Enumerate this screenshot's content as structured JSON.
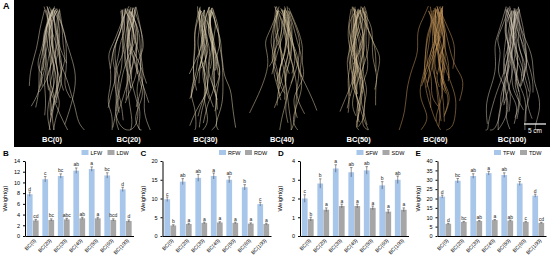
{
  "panel_a": {
    "label": "A",
    "samples": [
      "BC(0)",
      "BC(20)",
      "BC(30)",
      "BC(40)",
      "BC(50)",
      "BC(60)",
      "BC(100)"
    ],
    "scale_bar": "5 cm"
  },
  "chart_data": [
    {
      "type": "bar",
      "title": "B",
      "y_label": "Weight(g)",
      "categories": [
        "BC(0)",
        "BC(20)",
        "BC(30)",
        "BC(40)",
        "BC(50)",
        "BC(60)",
        "BC(100)"
      ],
      "series": [
        {
          "name": "LFW",
          "color": "#a8c6ea",
          "values": [
            7.8,
            10.6,
            11.2,
            12.2,
            12.5,
            11.3,
            8.7
          ],
          "errors": [
            0.4,
            0.5,
            0.4,
            0.5,
            0.4,
            0.5,
            0.4
          ],
          "annotations": [
            "d",
            "c",
            "bc",
            "ab",
            "a",
            "bc",
            "d"
          ]
        },
        {
          "name": "LDW",
          "color": "#a6a6a6",
          "values": [
            2.9,
            3.0,
            3.1,
            3.3,
            3.3,
            3.0,
            2.8
          ],
          "errors": [
            0.2,
            0.2,
            0.2,
            0.2,
            0.2,
            0.2,
            0.2
          ],
          "annotations": [
            "cd",
            "bc",
            "abc",
            "ab",
            "a",
            "bcd",
            "d"
          ]
        }
      ],
      "ylim": [
        0,
        14
      ],
      "yticks": [
        0,
        2,
        4,
        6,
        8,
        10,
        12,
        14
      ],
      "legend": "top-right"
    },
    {
      "type": "bar",
      "title": "C",
      "y_label": "Weight(g)",
      "categories": [
        "BC(0)",
        "BC(20)",
        "BC(30)",
        "BC(40)",
        "BC(50)",
        "BC(60)",
        "BC(100)"
      ],
      "series": [
        {
          "name": "RFW",
          "color": "#a8c6ea",
          "values": [
            9.8,
            14.5,
            15.5,
            16.0,
            15.0,
            13.0,
            8.5
          ],
          "errors": [
            0.6,
            0.8,
            0.9,
            0.8,
            0.8,
            0.7,
            0.5
          ],
          "annotations": [
            "c",
            "ab",
            "ab",
            "a",
            "ab",
            "b",
            "c"
          ]
        },
        {
          "name": "RDW",
          "color": "#a6a6a6",
          "values": [
            2.8,
            3.2,
            3.5,
            3.6,
            3.5,
            3.3,
            3.2
          ],
          "errors": [
            0.2,
            0.2,
            0.2,
            0.2,
            0.2,
            0.2,
            0.2
          ],
          "annotations": [
            "b",
            "a",
            "a",
            "a",
            "a",
            "a",
            "a"
          ]
        }
      ],
      "ylim": [
        0,
        20
      ],
      "yticks": [
        0,
        5,
        10,
        15,
        20
      ],
      "legend": "top-right"
    },
    {
      "type": "bar",
      "title": "D",
      "y_label": "Weight(g)",
      "categories": [
        "BC(0)",
        "BC(20)",
        "BC(30)",
        "BC(40)",
        "BC(50)",
        "BC(60)",
        "BC(100)"
      ],
      "series": [
        {
          "name": "SFW",
          "color": "#a8c6ea",
          "values": [
            2.0,
            2.8,
            3.6,
            3.4,
            3.5,
            2.7,
            3.0
          ],
          "errors": [
            0.2,
            0.25,
            0.2,
            0.25,
            0.2,
            0.2,
            0.2
          ],
          "annotations": [
            "c",
            "b",
            "a",
            "ab",
            "ab",
            "b",
            "ab"
          ]
        },
        {
          "name": "SDW",
          "color": "#a6a6a6",
          "values": [
            0.9,
            1.4,
            1.6,
            1.6,
            1.5,
            1.3,
            1.4
          ],
          "errors": [
            0.1,
            0.1,
            0.1,
            0.1,
            0.1,
            0.1,
            0.1
          ],
          "annotations": [
            "b",
            "a",
            "a",
            "a",
            "a",
            "a",
            "a"
          ]
        }
      ],
      "ylim": [
        0,
        4
      ],
      "yticks": [
        0,
        1,
        2,
        3,
        4
      ],
      "legend": "top-right"
    },
    {
      "type": "bar",
      "title": "E",
      "y_label": "Weight(g)",
      "categories": [
        "BC(0)",
        "BC(20)",
        "BC(30)",
        "BC(40)",
        "BC(50)",
        "BC(60)",
        "BC(100)"
      ],
      "series": [
        {
          "name": "TFW",
          "color": "#a8c6ea",
          "values": [
            21.0,
            29.5,
            32.0,
            33.5,
            32.5,
            28.0,
            21.5
          ],
          "errors": [
            0.8,
            1.2,
            1.2,
            1.0,
            1.2,
            1.0,
            0.8
          ],
          "annotations": [
            "d",
            "bc",
            "ab",
            "a",
            "ab",
            "c",
            "d"
          ]
        },
        {
          "name": "TDW",
          "color": "#a6a6a6",
          "values": [
            6.5,
            7.5,
            8.0,
            8.5,
            8.2,
            7.5,
            7.0
          ],
          "errors": [
            0.3,
            0.3,
            0.3,
            0.3,
            0.3,
            0.3,
            0.3
          ],
          "annotations": [
            "d",
            "bc",
            "ab",
            "a",
            "ab",
            "c",
            "cd"
          ]
        }
      ],
      "ylim": [
        0,
        40
      ],
      "yticks": [
        0,
        5,
        10,
        15,
        20,
        25,
        30,
        35,
        40
      ],
      "legend": "top-right"
    }
  ]
}
